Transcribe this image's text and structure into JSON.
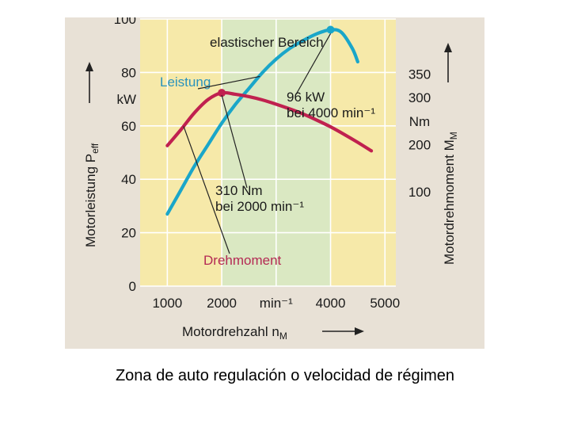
{
  "caption": "Zona de auto regulación o velocidad de régimen",
  "colors": {
    "background": "#e8e1d6",
    "plot_yellow": "#f6e9a9",
    "elastic_band": "#d7e8c4",
    "power_line": "#1aa6c9",
    "torque_line": "#c0214f",
    "power_label": "#2a93bd",
    "torque_label": "#b42a54",
    "grid": "#ffffff"
  },
  "chart_data": {
    "type": "line",
    "xlabel": "Motordrehzahl n",
    "xlabel_sub": "M",
    "x_tick_labels": [
      "1000",
      "2000",
      "min⁻¹",
      "4000",
      "5000"
    ],
    "x_ticks": [
      1000,
      2000,
      3000,
      4000,
      5000
    ],
    "xlim": [
      500,
      5200
    ],
    "ylabel": "Motorleistung P",
    "ylabel_sub": "eff",
    "y_tick_labels": [
      "0",
      "20",
      "40",
      "60",
      "80",
      "100"
    ],
    "y_ticks": [
      0,
      20,
      40,
      60,
      80,
      100
    ],
    "y_unit": "kW",
    "ylim": [
      0,
      100
    ],
    "y2label": "Motordrehmoment M",
    "y2label_sub": "M",
    "y2_tick_labels": [
      "100",
      "200",
      "300",
      "350"
    ],
    "y2_ticks": [
      100,
      200,
      300,
      350
    ],
    "y2_unit": "Nm",
    "y2lim": [
      -100,
      466.7
    ],
    "region": {
      "label": "elastischer Bereich",
      "x_from": 2000,
      "x_to": 4000
    },
    "series": [
      {
        "name": "Leistung",
        "axis": "left",
        "unit": "kW",
        "x": [
          1000,
          1250,
          1500,
          1750,
          2000,
          2250,
          2500,
          2750,
          3000,
          3250,
          3500,
          3750,
          4000,
          4200,
          4400,
          4500
        ],
        "values": [
          27,
          36,
          45,
          53,
          61,
          68,
          74,
          80,
          85,
          89,
          92,
          94.5,
          96,
          95,
          89,
          84
        ]
      },
      {
        "name": "Drehmoment",
        "axis": "right",
        "unit": "Nm",
        "x": [
          1000,
          1250,
          1500,
          1750,
          2000,
          2250,
          2500,
          2750,
          3000,
          3250,
          3500,
          3750,
          4000,
          4250,
          4500,
          4750
        ],
        "values": [
          198,
          232,
          268,
          296,
          310,
          307,
          302,
          295,
          286,
          276,
          265,
          252,
          238,
          222,
          205,
          187
        ]
      }
    ],
    "annotations": [
      {
        "label_lines": [
          "96 kW",
          "bei 4000 min⁻¹"
        ],
        "point_series": "Leistung",
        "x": 4000,
        "y": 96
      },
      {
        "label_lines": [
          "310 Nm",
          "bei 2000 min⁻¹"
        ],
        "point_series": "Drehmoment",
        "x": 2000,
        "y": 310
      }
    ]
  }
}
